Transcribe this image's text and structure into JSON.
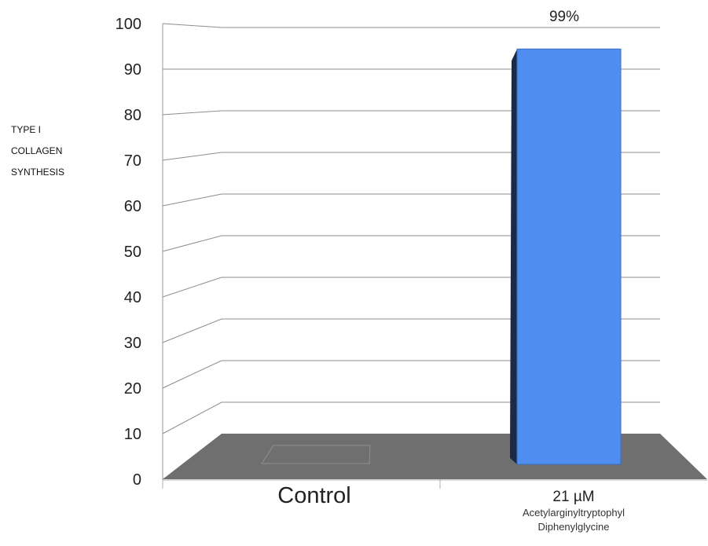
{
  "chart_data": {
    "type": "bar",
    "ylabel_lines": [
      "TYPE I",
      "COLLAGEN",
      "SYNTHESIS"
    ],
    "ylim": [
      0,
      100
    ],
    "yticks": [
      0,
      10,
      20,
      30,
      40,
      50,
      60,
      70,
      80,
      90,
      100
    ],
    "categories": [
      {
        "label": "Control",
        "sublabel": ""
      },
      {
        "label": "21 µM",
        "sublabel": "Acetylarginyltryptophyl\nDiphenylglycine"
      }
    ],
    "values": [
      0,
      99
    ],
    "data_labels": [
      "",
      "99%"
    ],
    "grid": true,
    "colors": {
      "bar": "#4f8ef0",
      "bar_side": "#1b2a49",
      "floor": "#6f6f6f",
      "grid": "#8c8c8c"
    }
  }
}
